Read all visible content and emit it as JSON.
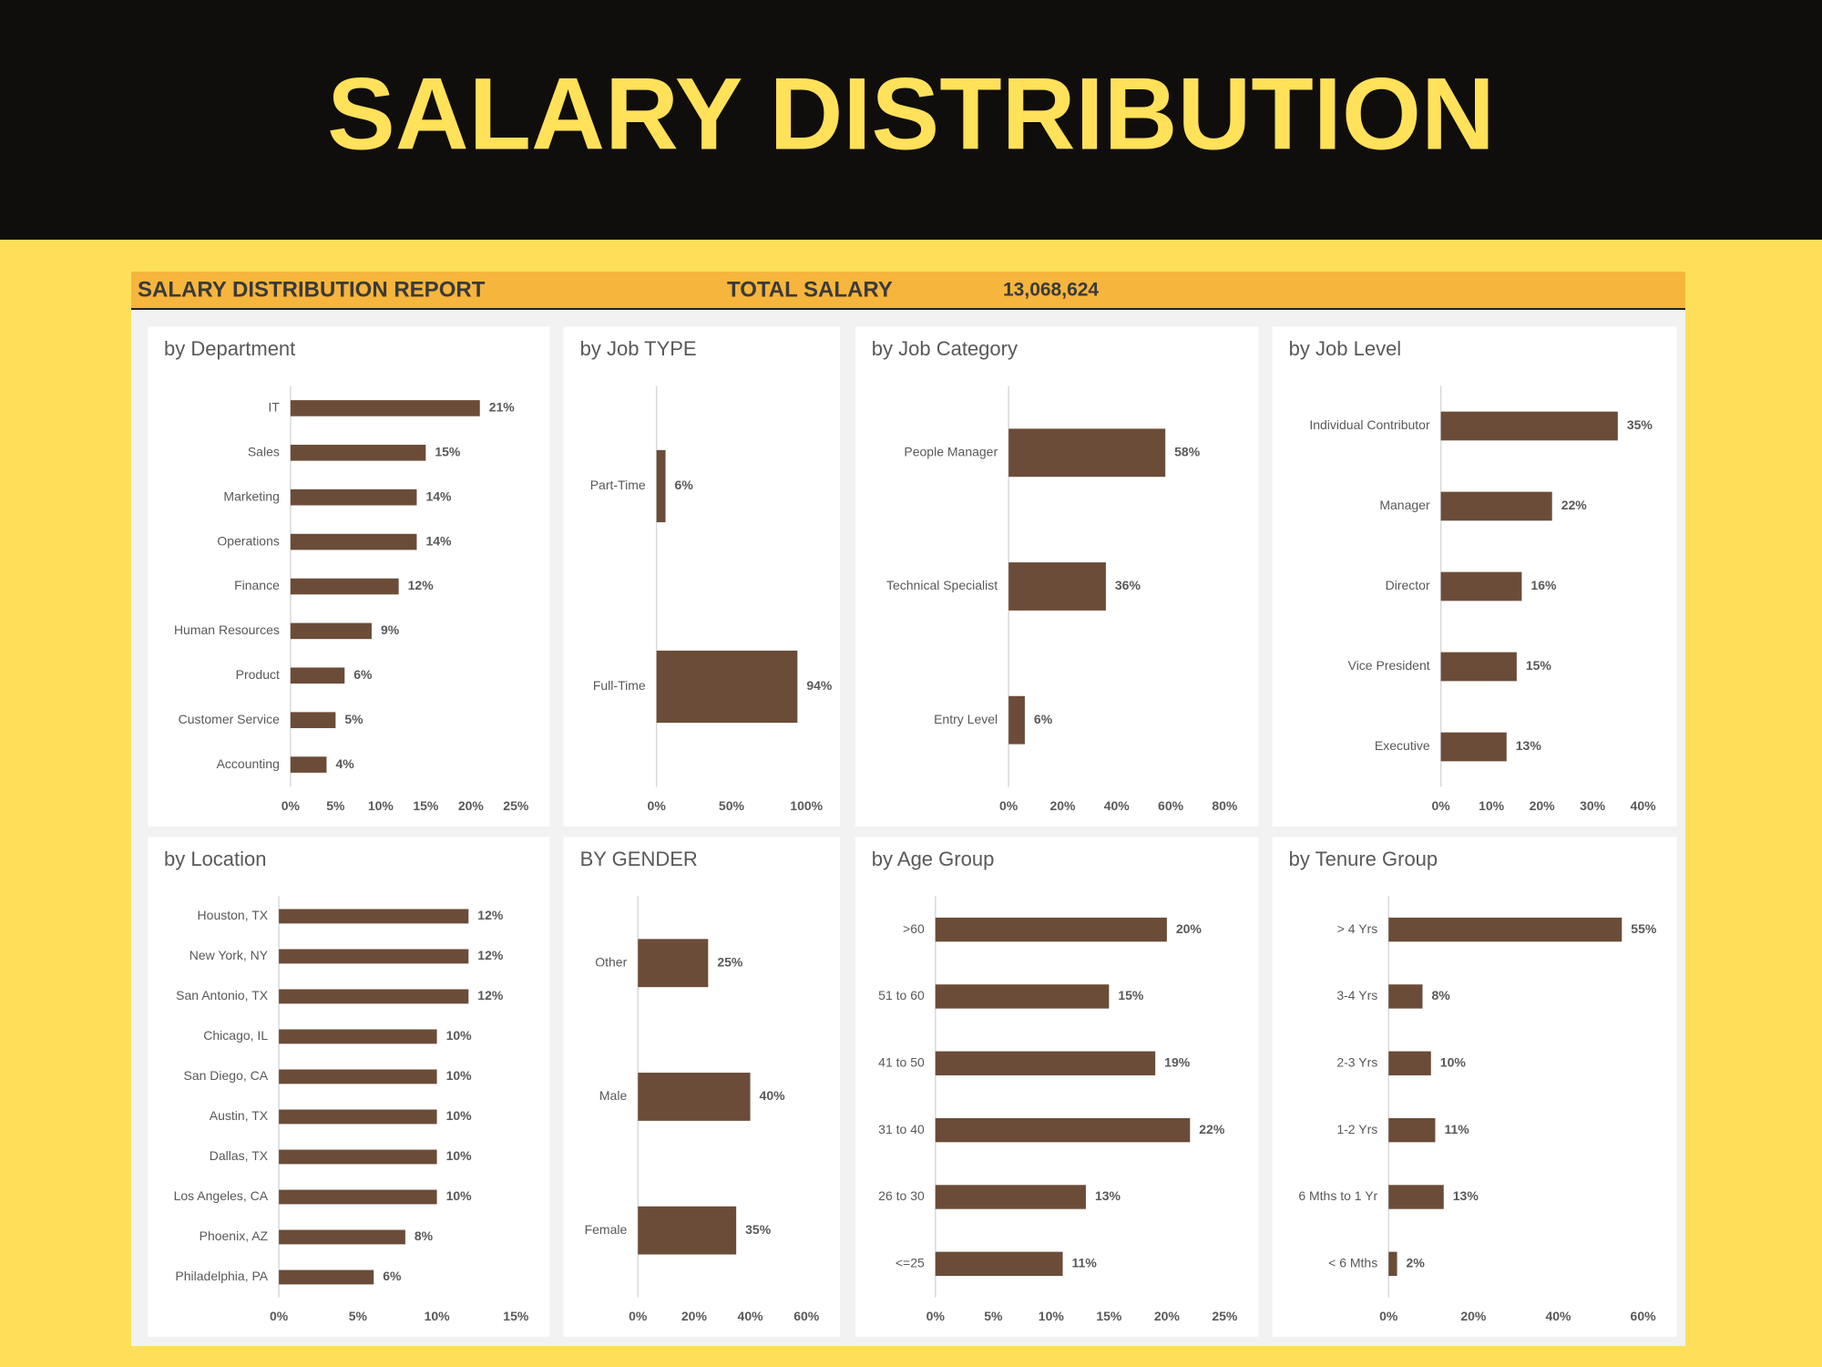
{
  "header": {
    "title": "SALARY DISTRIBUTION"
  },
  "report": {
    "title": "SALARY DISTRIBUTION REPORT",
    "total_label": "TOTAL SALARY",
    "total_value": "13,068,624"
  },
  "chart_data": [
    {
      "type": "barh",
      "title": "by Department",
      "color": "#6b4c38",
      "grid": false,
      "categories": [
        "IT",
        "Sales",
        "Marketing",
        "Operations",
        "Finance",
        "Human Resources",
        "Product",
        "Customer Service",
        "Accounting"
      ],
      "values": [
        21,
        15,
        14,
        14,
        12,
        9,
        6,
        5,
        4
      ],
      "value_labels": [
        "21%",
        "15%",
        "14%",
        "14%",
        "12%",
        "9%",
        "6%",
        "5%",
        "4%"
      ],
      "xlim": [
        0,
        25
      ],
      "xticks": [
        {
          "value": 0,
          "label": "0%"
        },
        {
          "value": 5,
          "label": "5%"
        },
        {
          "value": 10,
          "label": "10%"
        },
        {
          "value": 15,
          "label": "15%"
        },
        {
          "value": 20,
          "label": "20%"
        },
        {
          "value": 25,
          "label": "25%"
        }
      ]
    },
    {
      "type": "barh",
      "title": "by Job TYPE",
      "color": "#6b4c38",
      "grid": false,
      "categories": [
        "Part-Time",
        "Full-Time"
      ],
      "values": [
        6,
        94
      ],
      "value_labels": [
        "6%",
        "94%"
      ],
      "xlim": [
        0,
        100
      ],
      "xticks": [
        {
          "value": 0,
          "label": "0%"
        },
        {
          "value": 50,
          "label": "50%"
        },
        {
          "value": 100,
          "label": "100%"
        }
      ]
    },
    {
      "type": "barh",
      "title": "by Job Category",
      "color": "#6b4c38",
      "grid": false,
      "categories": [
        "People Manager",
        "Technical Specialist",
        "Entry Level"
      ],
      "values": [
        58,
        36,
        6
      ],
      "value_labels": [
        "58%",
        "36%",
        "6%"
      ],
      "xlim": [
        0,
        80
      ],
      "xticks": [
        {
          "value": 0,
          "label": "0%"
        },
        {
          "value": 20,
          "label": "20%"
        },
        {
          "value": 40,
          "label": "40%"
        },
        {
          "value": 60,
          "label": "60%"
        },
        {
          "value": 80,
          "label": "80%"
        }
      ]
    },
    {
      "type": "barh",
      "title": "by Job Level",
      "color": "#6b4c38",
      "grid": false,
      "categories": [
        "Individual Contributor",
        "Manager",
        "Director",
        "Vice President",
        "Executive"
      ],
      "values": [
        35,
        22,
        16,
        15,
        13
      ],
      "value_labels": [
        "35%",
        "22%",
        "16%",
        "15%",
        "13%"
      ],
      "xlim": [
        0,
        40
      ],
      "xticks": [
        {
          "value": 0,
          "label": "0%"
        },
        {
          "value": 10,
          "label": "10%"
        },
        {
          "value": 20,
          "label": "20%"
        },
        {
          "value": 30,
          "label": "30%"
        },
        {
          "value": 40,
          "label": "40%"
        }
      ]
    },
    {
      "type": "barh",
      "title": "by Location",
      "color": "#6b4c38",
      "grid": false,
      "categories": [
        "Houston, TX",
        "New York, NY",
        "San Antonio, TX",
        "Chicago, IL",
        "San Diego, CA",
        "Austin, TX",
        "Dallas, TX",
        "Los Angeles, CA",
        "Phoenix, AZ",
        "Philadelphia, PA"
      ],
      "values": [
        12,
        12,
        12,
        10,
        10,
        10,
        10,
        10,
        8,
        6
      ],
      "value_labels": [
        "12%",
        "12%",
        "12%",
        "10%",
        "10%",
        "10%",
        "10%",
        "10%",
        "8%",
        "6%"
      ],
      "xlim": [
        0,
        15
      ],
      "xticks": [
        {
          "value": 0,
          "label": "0%"
        },
        {
          "value": 5,
          "label": "5%"
        },
        {
          "value": 10,
          "label": "10%"
        },
        {
          "value": 15,
          "label": "15%"
        }
      ]
    },
    {
      "type": "barh",
      "title": "BY GENDER",
      "color": "#6b4c38",
      "grid": false,
      "categories": [
        "Other",
        "Male",
        "Female"
      ],
      "values": [
        25,
        40,
        35
      ],
      "value_labels": [
        "25%",
        "40%",
        "35%"
      ],
      "xlim": [
        0,
        60
      ],
      "xticks": [
        {
          "value": 0,
          "label": "0%"
        },
        {
          "value": 20,
          "label": "20%"
        },
        {
          "value": 40,
          "label": "40%"
        },
        {
          "value": 60,
          "label": "60%"
        }
      ]
    },
    {
      "type": "barh",
      "title": "by Age Group",
      "color": "#6b4c38",
      "grid": false,
      "categories": [
        ">60",
        "51 to 60",
        "41 to 50",
        "31 to 40",
        "26 to 30",
        "<=25"
      ],
      "values": [
        20,
        15,
        19,
        22,
        13,
        11
      ],
      "value_labels": [
        "20%",
        "15%",
        "19%",
        "22%",
        "13%",
        "11%"
      ],
      "xlim": [
        0,
        25
      ],
      "xticks": [
        {
          "value": 0,
          "label": "0%"
        },
        {
          "value": 5,
          "label": "5%"
        },
        {
          "value": 10,
          "label": "10%"
        },
        {
          "value": 15,
          "label": "15%"
        },
        {
          "value": 20,
          "label": "20%"
        },
        {
          "value": 25,
          "label": "25%"
        }
      ]
    },
    {
      "type": "barh",
      "title": "by Tenure Group",
      "color": "#6b4c38",
      "grid": false,
      "categories": [
        "> 4 Yrs",
        "3-4 Yrs",
        "2-3 Yrs",
        "1-2 Yrs",
        "6 Mths to 1 Yr",
        "< 6 Mths"
      ],
      "values": [
        55,
        8,
        10,
        11,
        13,
        2
      ],
      "value_labels": [
        "55%",
        "8%",
        "10%",
        "11%",
        "13%",
        "2%"
      ],
      "xlim": [
        0,
        60
      ],
      "xticks": [
        {
          "value": 0,
          "label": "0%"
        },
        {
          "value": 20,
          "label": "20%"
        },
        {
          "value": 40,
          "label": "40%"
        },
        {
          "value": 60,
          "label": "60%"
        }
      ]
    }
  ]
}
